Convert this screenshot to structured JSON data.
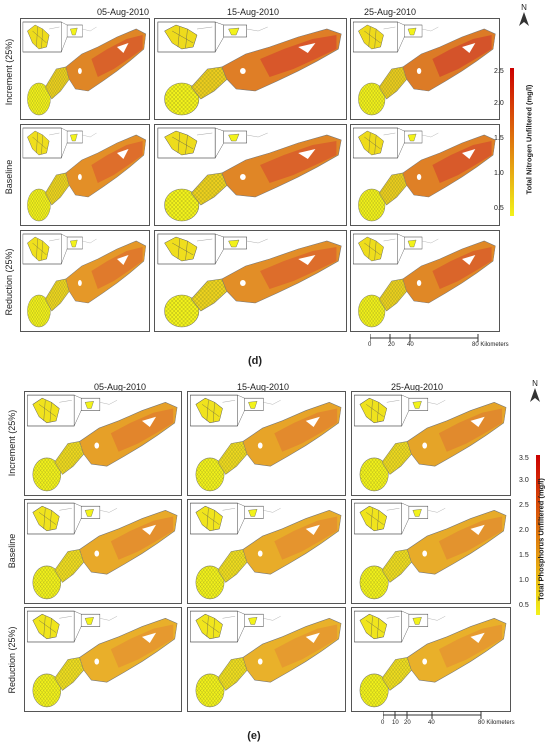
{
  "panels": [
    {
      "id": "d",
      "letter": "(d)",
      "columns": [
        "05-Aug-2010",
        "15-Aug-2010",
        "25-Aug-2010"
      ],
      "rows": [
        "Increment (25%)",
        "Baseline",
        "Reduction (25%)"
      ],
      "legend": {
        "title": "Total Nitrogen Unfiltered (mg/l)",
        "ticks": [
          "2.5",
          "2.0",
          "1.5",
          "1.0",
          "0.5"
        ],
        "color_low": "#f2f21a",
        "color_high": "#cc0000"
      },
      "scale": {
        "labels": [
          "0",
          "20",
          "40",
          "80 Kilometers"
        ]
      },
      "north": "N",
      "row_colors": [
        [
          "#d9622a",
          "#d8572a",
          "#d4532a"
        ],
        [
          "#de6e2b",
          "#da622a",
          "#d85a2a"
        ],
        [
          "#e07a2c",
          "#dd6d2b",
          "#da652a"
        ]
      ]
    },
    {
      "id": "e",
      "letter": "(e)",
      "columns": [
        "05-Aug-2010",
        "15-Aug-2010",
        "25-Aug-2010"
      ],
      "rows": [
        "Increment (25%)",
        "Baseline",
        "Reduction (25%)"
      ],
      "legend": {
        "title": "Total Phosphorus Unfiltered (mg/l)",
        "ticks": [
          "3.5",
          "3.0",
          "2.5",
          "2.0",
          "1.5",
          "1.0",
          "0.5"
        ],
        "color_low": "#f2f21a",
        "color_high": "#cc0000"
      },
      "scale": {
        "labels": [
          "0",
          "10",
          "20",
          "40",
          "80 Kilometers"
        ]
      },
      "north": "N",
      "row_colors": [
        [
          "#e2852c",
          "#e38a2d",
          "#e18a2d"
        ],
        [
          "#e4902e",
          "#e5942e",
          "#e3932e"
        ],
        [
          "#e6992f",
          "#e69b2f",
          "#e69a2f"
        ]
      ]
    }
  ]
}
